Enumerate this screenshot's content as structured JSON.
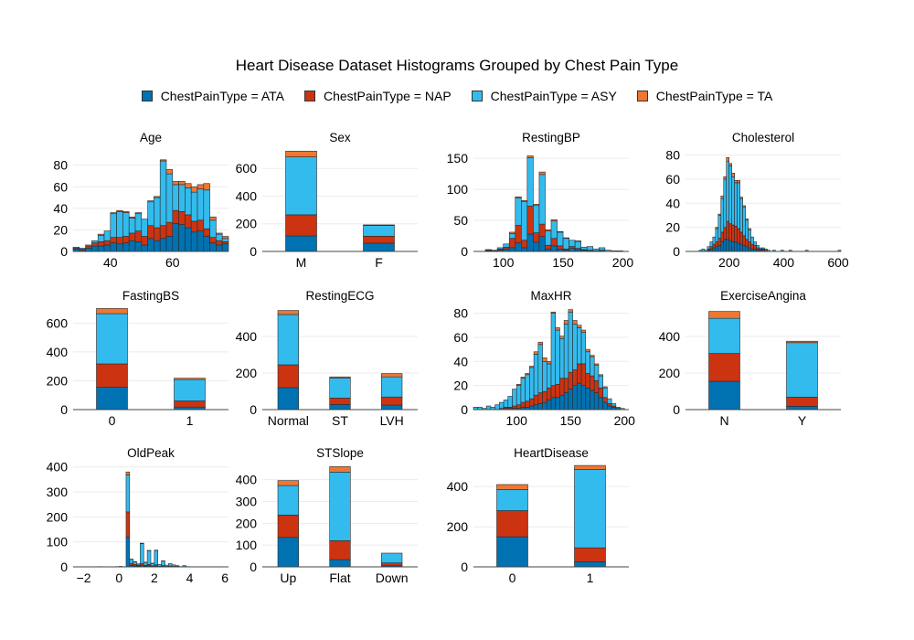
{
  "title": "Heart Disease Dataset Histograms Grouped by Chest Pain Type",
  "legend": [
    {
      "label": "ChestPainType = ATA",
      "color": "#0072b2"
    },
    {
      "label": "ChestPainType = NAP",
      "color": "#cc3311"
    },
    {
      "label": "ChestPainType = ASY",
      "color": "#33bbee"
    },
    {
      "label": "ChestPainType = TA",
      "color": "#ee7733"
    }
  ],
  "chart_data": [
    {
      "type": "bar",
      "title": "Age",
      "barmode": "stack",
      "continuous": true,
      "bin_start": 28,
      "bin_width": 2,
      "xlim": [
        28,
        78
      ],
      "ylim": [
        0,
        95
      ],
      "xticks": [
        40,
        60
      ],
      "yticks": [
        0,
        20,
        40,
        60,
        80
      ],
      "series": [
        {
          "values": [
            2,
            1,
            3,
            5,
            5,
            6,
            8,
            7,
            8,
            10,
            9,
            6,
            12,
            10,
            12,
            14,
            26,
            25,
            22,
            18,
            19,
            14,
            8,
            6,
            7
          ]
        },
        {
          "values": [
            1,
            1,
            2,
            3,
            4,
            4,
            5,
            6,
            6,
            7,
            10,
            8,
            12,
            12,
            12,
            13,
            12,
            12,
            12,
            10,
            10,
            7,
            5,
            4,
            2
          ]
        },
        {
          "values": [
            1,
            1,
            1,
            2,
            6,
            9,
            22,
            24,
            22,
            14,
            16,
            16,
            22,
            28,
            60,
            45,
            24,
            25,
            25,
            27,
            29,
            36,
            16,
            6,
            3
          ]
        },
        {
          "values": [
            0,
            0,
            0,
            0,
            1,
            0,
            1,
            1,
            1,
            1,
            1,
            0,
            1,
            1,
            1,
            4,
            3,
            3,
            4,
            5,
            4,
            6,
            3,
            1,
            2
          ]
        }
      ]
    },
    {
      "type": "bar",
      "title": "Sex",
      "barmode": "stack",
      "continuous": false,
      "categories": [
        "M",
        "F"
      ],
      "ylim": [
        0,
        740
      ],
      "yticks": [
        0,
        200,
        400,
        600
      ],
      "series": [
        {
          "values": [
            112,
            60
          ]
        },
        {
          "values": [
            153,
            50
          ]
        },
        {
          "values": [
            418,
            78
          ]
        },
        {
          "values": [
            42,
            4
          ]
        }
      ]
    },
    {
      "type": "bar",
      "title": "RestingBP",
      "barmode": "stack",
      "continuous": true,
      "bin_start": 80,
      "bin_width": 5,
      "xlim": [
        75,
        205
      ],
      "ylim": [
        0,
        165
      ],
      "xticks": [
        100,
        150,
        200
      ],
      "yticks": [
        0,
        50,
        100,
        150
      ],
      "series": [
        {
          "values": [
            0,
            1,
            0,
            2,
            4,
            6,
            14,
            6,
            28,
            15,
            24,
            4,
            9,
            4,
            2,
            5,
            3,
            2,
            1,
            0,
            1,
            0,
            0,
            0
          ]
        },
        {
          "values": [
            0,
            1,
            1,
            2,
            3,
            15,
            28,
            12,
            45,
            15,
            20,
            6,
            12,
            5,
            2,
            3,
            2,
            1,
            1,
            1,
            1,
            0,
            0,
            0
          ]
        },
        {
          "values": [
            0,
            0,
            1,
            2,
            5,
            8,
            44,
            62,
            78,
            44,
            80,
            23,
            28,
            22,
            17,
            10,
            11,
            4,
            6,
            3,
            4,
            2,
            1,
            1
          ]
        },
        {
          "values": [
            0,
            1,
            0,
            0,
            0,
            2,
            2,
            2,
            3,
            2,
            4,
            2,
            2,
            1,
            1,
            0,
            1,
            0,
            0,
            0,
            0,
            0,
            0,
            0
          ]
        }
      ]
    },
    {
      "type": "bar",
      "title": "Cholesterol",
      "barmode": "stack",
      "continuous": true,
      "bin_start": 40,
      "bin_width": 10,
      "xlim": [
        40,
        610
      ],
      "ylim": [
        0,
        85
      ],
      "xticks": [
        200,
        400,
        600
      ],
      "yticks": [
        0,
        20,
        40,
        60,
        80
      ],
      "series": [
        {
          "values": [
            0,
            0,
            0,
            0,
            0,
            0,
            0,
            0,
            1,
            2,
            3,
            4,
            5,
            8,
            10,
            10,
            9,
            8,
            8,
            7,
            6,
            5,
            4,
            3,
            2,
            2,
            1,
            1,
            1,
            0,
            0,
            0,
            0,
            0,
            0,
            0,
            0,
            0,
            0,
            0,
            0,
            0,
            0,
            0,
            0,
            0,
            0,
            0,
            0,
            0,
            0,
            0,
            0,
            0,
            0,
            0,
            0
          ]
        },
        {
          "values": [
            0,
            0,
            0,
            0,
            0,
            0,
            0,
            0,
            1,
            2,
            3,
            4,
            6,
            8,
            10,
            15,
            14,
            14,
            13,
            12,
            10,
            8,
            6,
            5,
            4,
            3,
            2,
            1,
            1,
            1,
            0,
            0,
            0,
            0,
            0,
            0,
            0,
            0,
            0,
            0,
            0,
            0,
            0,
            0,
            0,
            0,
            0,
            0,
            0,
            0,
            0,
            0,
            0,
            0,
            0,
            0,
            0
          ]
        },
        {
          "values": [
            0,
            0,
            0,
            0,
            0,
            1,
            2,
            1,
            2,
            4,
            6,
            11,
            19,
            28,
            40,
            50,
            48,
            40,
            36,
            38,
            28,
            24,
            16,
            10,
            6,
            3,
            2,
            1,
            1,
            1,
            1,
            0,
            1,
            0,
            0,
            1,
            0,
            0,
            1,
            0,
            0,
            0,
            0,
            0,
            1,
            0,
            0,
            0,
            0,
            0,
            0,
            0,
            0,
            0,
            0,
            0,
            1
          ]
        },
        {
          "values": [
            0,
            0,
            0,
            0,
            0,
            0,
            0,
            0,
            0,
            0,
            0,
            1,
            1,
            2,
            2,
            3,
            2,
            3,
            2,
            2,
            1,
            1,
            1,
            1,
            0,
            0,
            0,
            0,
            0,
            0,
            0,
            0,
            0,
            0,
            0,
            0,
            0,
            0,
            0,
            0,
            0,
            0,
            0,
            0,
            0,
            0,
            0,
            0,
            0,
            0,
            0,
            0,
            0,
            0,
            0,
            0,
            0
          ]
        }
      ]
    },
    {
      "type": "bar",
      "title": "FastingBS",
      "barmode": "stack",
      "continuous": false,
      "categories": [
        "0",
        "1"
      ],
      "ylim": [
        0,
        710
      ],
      "yticks": [
        0,
        200,
        400,
        600
      ],
      "series": [
        {
          "values": [
            155,
            18
          ]
        },
        {
          "values": [
            162,
            42
          ]
        },
        {
          "values": [
            348,
            148
          ]
        },
        {
          "values": [
            36,
            10
          ]
        }
      ]
    },
    {
      "type": "bar",
      "title": "RestingECG",
      "barmode": "stack",
      "continuous": false,
      "categories": [
        "Normal",
        "ST",
        "LVH"
      ],
      "ylim": [
        0,
        560
      ],
      "yticks": [
        0,
        200,
        400
      ],
      "series": [
        {
          "values": [
            120,
            28,
            25
          ]
        },
        {
          "values": [
            125,
            35,
            44
          ]
        },
        {
          "values": [
            275,
            110,
            110
          ]
        },
        {
          "values": [
            22,
            6,
            18
          ]
        }
      ]
    },
    {
      "type": "bar",
      "title": "MaxHR",
      "barmode": "stack",
      "continuous": true,
      "bin_start": 60,
      "bin_width": 4,
      "xlim": [
        60,
        204
      ],
      "ylim": [
        0,
        85
      ],
      "xticks": [
        100,
        150,
        200
      ],
      "yticks": [
        0,
        20,
        40,
        60,
        80
      ],
      "series": [
        {
          "values": [
            0,
            0,
            0,
            0,
            0,
            0,
            0,
            1,
            1,
            1,
            1,
            2,
            2,
            3,
            4,
            5,
            6,
            8,
            10,
            10,
            12,
            14,
            17,
            20,
            22,
            20,
            18,
            16,
            14,
            10,
            6,
            3,
            2,
            1,
            0,
            0
          ]
        },
        {
          "values": [
            0,
            0,
            0,
            0,
            0,
            0,
            1,
            1,
            1,
            2,
            3,
            4,
            5,
            6,
            8,
            9,
            9,
            10,
            10,
            11,
            14,
            12,
            14,
            13,
            16,
            18,
            12,
            12,
            10,
            8,
            4,
            2,
            1,
            0,
            0,
            0
          ]
        },
        {
          "values": [
            2,
            2,
            1,
            3,
            2,
            4,
            5,
            6,
            9,
            14,
            16,
            20,
            22,
            26,
            34,
            40,
            25,
            20,
            60,
            45,
            33,
            45,
            50,
            38,
            30,
            26,
            18,
            16,
            13,
            10,
            8,
            4,
            2,
            1,
            1,
            0
          ]
        },
        {
          "values": [
            0,
            0,
            0,
            0,
            0,
            0,
            0,
            0,
            0,
            0,
            1,
            1,
            1,
            1,
            2,
            2,
            3,
            2,
            1,
            2,
            2,
            3,
            2,
            3,
            2,
            2,
            2,
            1,
            1,
            1,
            1,
            0,
            0,
            0,
            0,
            0
          ]
        }
      ]
    },
    {
      "type": "bar",
      "title": "ExerciseAngina",
      "barmode": "stack",
      "continuous": false,
      "categories": [
        "N",
        "Y"
      ],
      "ylim": [
        0,
        560
      ],
      "yticks": [
        0,
        200,
        400
      ],
      "series": [
        {
          "values": [
            155,
            18
          ]
        },
        {
          "values": [
            152,
            50
          ]
        },
        {
          "values": [
            192,
            298
          ]
        },
        {
          "values": [
            38,
            8
          ]
        }
      ]
    },
    {
      "type": "bar",
      "title": "OldPeak",
      "barmode": "stack",
      "continuous": true,
      "bin_start": -2.6,
      "bin_width": 0.2,
      "xlim": [
        -2.6,
        6.2
      ],
      "ylim": [
        0,
        410
      ],
      "xticks": [
        -2,
        0,
        2,
        4,
        6
      ],
      "yticks": [
        0,
        100,
        200,
        300,
        400
      ],
      "series": [
        {
          "values": [
            0,
            0,
            0,
            0,
            0,
            0,
            0,
            0,
            0,
            0,
            0,
            0,
            0,
            0,
            0,
            120,
            6,
            4,
            3,
            5,
            3,
            4,
            2,
            3,
            1,
            2,
            1,
            1,
            1,
            1,
            0,
            1,
            0,
            0,
            0,
            0,
            0,
            0,
            0,
            0,
            0,
            0,
            0,
            0
          ]
        },
        {
          "values": [
            0,
            0,
            0,
            0,
            0,
            0,
            0,
            0,
            0,
            0,
            0,
            0,
            0,
            0,
            0,
            100,
            8,
            6,
            3,
            8,
            3,
            6,
            2,
            5,
            1,
            3,
            1,
            2,
            1,
            1,
            0,
            0,
            0,
            0,
            0,
            0,
            0,
            0,
            0,
            0,
            0,
            0,
            0,
            0
          ]
        },
        {
          "values": [
            0,
            0,
            0,
            0,
            0,
            0,
            0,
            1,
            0,
            0,
            0,
            0,
            1,
            2,
            0,
            148,
            16,
            10,
            5,
            80,
            12,
            55,
            10,
            58,
            8,
            18,
            5,
            10,
            6,
            3,
            1,
            4,
            1,
            0,
            0,
            0,
            0,
            0,
            0,
            0,
            0,
            0,
            0,
            0
          ]
        },
        {
          "values": [
            0,
            0,
            0,
            0,
            0,
            0,
            0,
            0,
            0,
            0,
            0,
            0,
            0,
            0,
            0,
            12,
            1,
            1,
            1,
            2,
            1,
            1,
            1,
            1,
            0,
            1,
            0,
            0,
            0,
            0,
            0,
            0,
            0,
            0,
            0,
            0,
            0,
            0,
            0,
            0,
            0,
            0,
            0,
            0
          ]
        }
      ]
    },
    {
      "type": "bar",
      "title": "STSlope",
      "barmode": "stack",
      "continuous": false,
      "categories": [
        "Up",
        "Flat",
        "Down"
      ],
      "ylim": [
        0,
        470
      ],
      "yticks": [
        0,
        100,
        200,
        300,
        400
      ],
      "series": [
        {
          "values": [
            135,
            33,
            5
          ]
        },
        {
          "values": [
            103,
            87,
            13
          ]
        },
        {
          "values": [
            135,
            315,
            45
          ]
        },
        {
          "values": [
            23,
            25,
            0
          ]
        }
      ]
    },
    {
      "type": "bar",
      "title": "HeartDisease",
      "barmode": "stack",
      "continuous": false,
      "categories": [
        "0",
        "1"
      ],
      "ylim": [
        0,
        510
      ],
      "yticks": [
        0,
        200,
        400
      ],
      "series": [
        {
          "values": [
            150,
            25
          ]
        },
        {
          "values": [
            130,
            70
          ]
        },
        {
          "values": [
            105,
            390
          ]
        },
        {
          "values": [
            25,
            20
          ]
        }
      ]
    }
  ]
}
